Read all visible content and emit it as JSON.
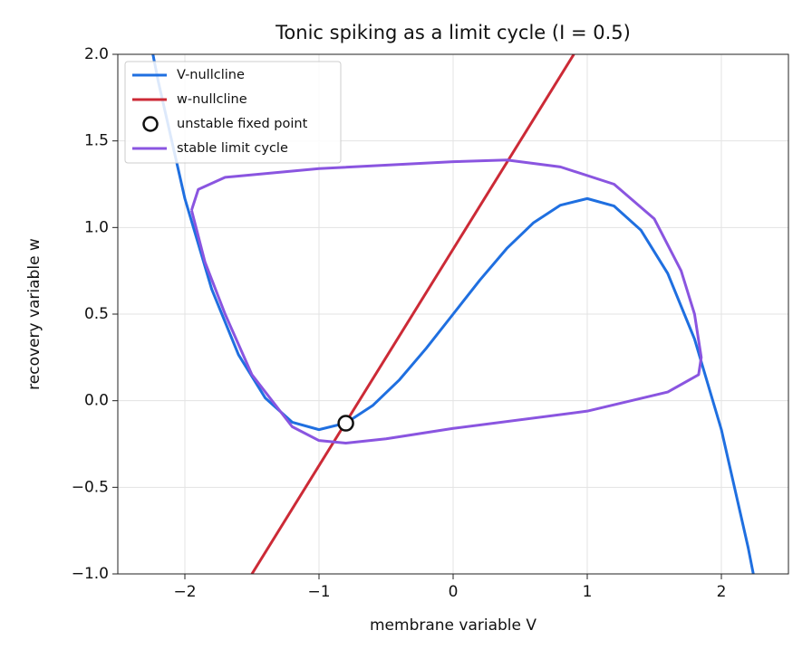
{
  "chart_data": {
    "type": "line",
    "title": "Tonic spiking as a limit cycle (I = 0.5)",
    "x_label": "membrane variable  V",
    "y_label": "recovery variable  w",
    "xlim": [
      -2.5,
      2.5
    ],
    "ylim": [
      -1.0,
      2.0
    ],
    "xticks": [
      {
        "value": -2,
        "label": "−2"
      },
      {
        "value": -1,
        "label": "−1"
      },
      0,
      1,
      2
    ],
    "yticks": [
      {
        "value": -1.0,
        "label": "−1.0"
      },
      {
        "value": -0.5,
        "label": "−0.5"
      },
      {
        "value": 0.0,
        "label": "0.0"
      },
      0.5,
      {
        "value": 1.0,
        "label": "1.0"
      },
      1.5,
      {
        "value": 2.0,
        "label": "2.0"
      }
    ],
    "grid": true,
    "legend": "upper left",
    "series": [
      {
        "name": "V-nullcline",
        "color": "#1f6fe0",
        "style": "line",
        "x": [
          -2.25,
          -2.2,
          -2.0,
          -1.8,
          -1.6,
          -1.4,
          -1.2,
          -1.0,
          -0.8,
          -0.6,
          -0.4,
          -0.2,
          0,
          0.2,
          0.4,
          0.6,
          0.8,
          1.0,
          1.2,
          1.4,
          1.6,
          1.8,
          2.0,
          2.2,
          2.25
        ],
        "values": [
          2.047,
          1.849,
          1.167,
          0.644,
          0.265,
          0.015,
          -0.124,
          -0.167,
          -0.129,
          -0.028,
          0.121,
          0.303,
          0.5,
          0.697,
          0.879,
          1.028,
          1.129,
          1.167,
          1.124,
          0.985,
          0.735,
          0.356,
          -0.167,
          -0.849,
          -1.047
        ]
      },
      {
        "name": "w-nullcline",
        "color": "#cc2a36",
        "style": "line",
        "x": [
          -1.5,
          0.9
        ],
        "values": [
          -1.0,
          2.0
        ]
      },
      {
        "name": "unstable fixed point",
        "color": "#111111",
        "style": "marker",
        "x": [
          -0.8
        ],
        "values": [
          -0.13
        ]
      },
      {
        "name": "stable limit cycle",
        "color": "#8a55e0",
        "style": "line",
        "x": [
          -1.95,
          -1.9,
          -1.7,
          -1.0,
          0,
          0.4,
          0.8,
          1.2,
          1.5,
          1.7,
          1.8,
          1.85,
          1.83,
          1.6,
          1.0,
          0,
          -0.5,
          -0.8,
          -1.0,
          -1.2,
          -1.5,
          -1.7,
          -1.85,
          -1.95
        ],
        "values": [
          1.1,
          1.22,
          1.29,
          1.34,
          1.38,
          1.39,
          1.35,
          1.25,
          1.05,
          0.75,
          0.5,
          0.25,
          0.15,
          0.05,
          -0.06,
          -0.16,
          -0.22,
          -0.245,
          -0.23,
          -0.15,
          0.15,
          0.5,
          0.8,
          1.1
        ]
      }
    ]
  }
}
